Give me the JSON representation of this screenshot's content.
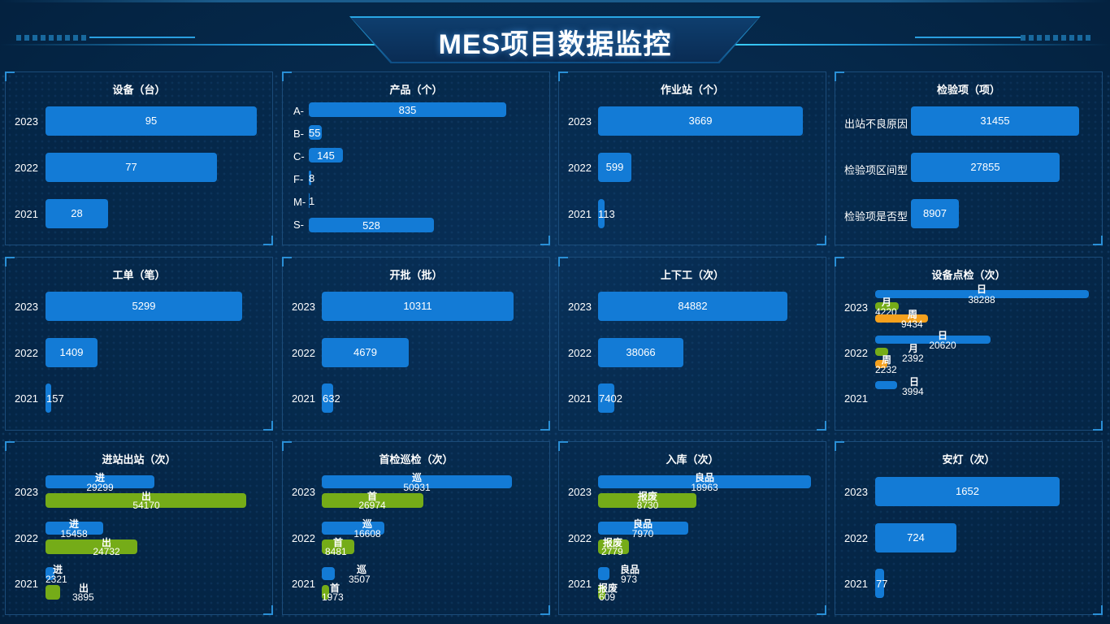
{
  "title": "MES项目数据监控",
  "colors": {
    "bar_blue": "#137bd6",
    "bar_green": "#75ac18",
    "bar_orange": "#f5a11d",
    "background": "#03203d"
  },
  "panels": {
    "equipment": {
      "title": "设备（台）",
      "rows": [
        {
          "label": "2023",
          "value": "95"
        },
        {
          "label": "2022",
          "value": "77"
        },
        {
          "label": "2021",
          "value": "28"
        }
      ]
    },
    "product": {
      "title": "产品（个）",
      "rows": [
        {
          "label": "A-",
          "value": "835"
        },
        {
          "label": "B-",
          "value": "55"
        },
        {
          "label": "C-",
          "value": "145"
        },
        {
          "label": "F-",
          "value": "8"
        },
        {
          "label": "M-",
          "value": "1"
        },
        {
          "label": "S-",
          "value": "528"
        }
      ]
    },
    "station": {
      "title": "作业站（个）",
      "rows": [
        {
          "label": "2023",
          "value": "3669"
        },
        {
          "label": "2022",
          "value": "599"
        },
        {
          "label": "2021",
          "value": "113"
        }
      ]
    },
    "inspection_item": {
      "title": "检验项（项）",
      "rows": [
        {
          "label": "出站不良原因",
          "value": "31455"
        },
        {
          "label": "检验项区间型",
          "value": "27855"
        },
        {
          "label": "检验项是否型",
          "value": "8907"
        }
      ]
    },
    "work_order": {
      "title": "工单（笔）",
      "rows": [
        {
          "label": "2023",
          "value": "5299"
        },
        {
          "label": "2022",
          "value": "1409"
        },
        {
          "label": "2021",
          "value": "157"
        }
      ]
    },
    "batch": {
      "title": "开批（批）",
      "rows": [
        {
          "label": "2023",
          "value": "10311"
        },
        {
          "label": "2022",
          "value": "4679"
        },
        {
          "label": "2021",
          "value": "632"
        }
      ]
    },
    "shift": {
      "title": "上下工（次）",
      "rows": [
        {
          "label": "2023",
          "value": "84882"
        },
        {
          "label": "2022",
          "value": "38066"
        },
        {
          "label": "2021",
          "value": "7402"
        }
      ]
    },
    "spot_check": {
      "title": "设备点检（次）",
      "years": [
        "2023",
        "2022",
        "2021"
      ],
      "labels": {
        "day": "日",
        "month": "月",
        "week": "周"
      },
      "values": {
        "2023": {
          "day": "38288",
          "month": "4220",
          "week": "9434"
        },
        "2022": {
          "day": "20620",
          "month": "2392",
          "week": "2232"
        },
        "2021": {
          "day": "3994"
        }
      }
    },
    "in_out": {
      "title": "进站出站（次）",
      "years": [
        "2023",
        "2022",
        "2021"
      ],
      "labels": {
        "in": "进",
        "out": "出"
      },
      "values": {
        "2023": {
          "in": "29299",
          "out": "54170"
        },
        "2022": {
          "in": "15458",
          "out": "24732"
        },
        "2021": {
          "in": "2321",
          "out": "3895"
        }
      }
    },
    "first_patrol": {
      "title": "首检巡检（次）",
      "years": [
        "2023",
        "2022",
        "2021"
      ],
      "labels": {
        "patrol": "巡",
        "first": "首"
      },
      "values": {
        "2023": {
          "patrol": "50931",
          "first": "26974"
        },
        "2022": {
          "patrol": "16608",
          "first": "8481"
        },
        "2021": {
          "patrol": "3507",
          "first": "1973"
        }
      }
    },
    "warehouse": {
      "title": "入库（次）",
      "years": [
        "2023",
        "2022",
        "2021"
      ],
      "labels": {
        "good": "良品",
        "scrap": "报废"
      },
      "values": {
        "2023": {
          "good": "18963",
          "scrap": "8730"
        },
        "2022": {
          "good": "7970",
          "scrap": "2779"
        },
        "2021": {
          "good": "973",
          "scrap": "609"
        }
      }
    },
    "andon": {
      "title": "安灯（次）",
      "rows": [
        {
          "label": "2023",
          "value": "1652"
        },
        {
          "label": "2022",
          "value": "724"
        },
        {
          "label": "2021",
          "value": "77"
        }
      ]
    }
  }
}
